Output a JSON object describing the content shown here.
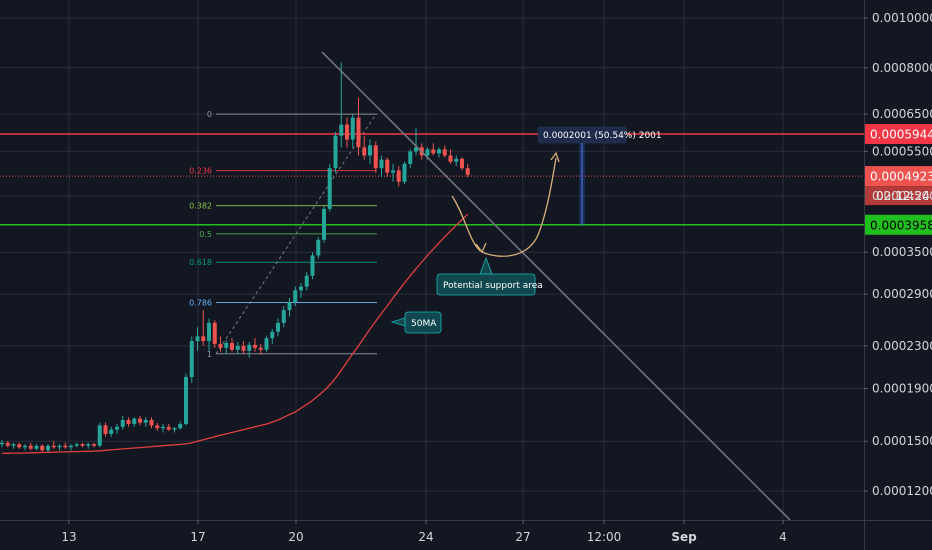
{
  "theme": {
    "background": "#131722",
    "grid": "#2a2e39",
    "up": "#26a69a",
    "down": "#ef5350",
    "ma": "#e04040",
    "resistance": "#f23645",
    "support": "#22c01f",
    "current": "#ef5350",
    "trendline": "#787b86",
    "fib_neutral": "#9598a1",
    "fib_236": "#f23645",
    "fib_382": "#8bc34a",
    "fib_05": "#4caf50",
    "fib_618": "#089981",
    "fib_786": "#64b5f6",
    "projection": "#d8b07a",
    "measure": "#2962ff",
    "note_bg": "#11484f",
    "note_border": "#1bb6b8"
  },
  "chart_data": {
    "type": "candlestick",
    "title": "",
    "y_scale": "log",
    "y_tick_labels": [
      "0.0010000",
      "0.0008000",
      "0.0006500",
      "0.0005500",
      "0.0004500",
      "0.0003500",
      "0.0002900",
      "0.0002300",
      "0.0001900",
      "0.0001500",
      "0.0001200"
    ],
    "y_tick_values": [
      0.001,
      0.0008,
      0.00065,
      0.00055,
      0.00045,
      0.00035,
      0.00029,
      0.00023,
      0.00019,
      0.00015,
      0.00012
    ],
    "x_tick_labels": [
      "13",
      "17",
      "20",
      "24",
      "27",
      "12:00",
      "Sep",
      "4"
    ],
    "x_tick_bold": [
      false,
      false,
      false,
      false,
      false,
      false,
      true,
      false
    ],
    "price_levels": [
      {
        "name": "resistance",
        "label": "0.0005944",
        "value": 0.0005944
      },
      {
        "name": "current",
        "label": "0.0004923",
        "value": 0.0004923,
        "countdown": "02:12:24"
      },
      {
        "name": "support",
        "label": "0.0003958",
        "value": 0.0003958
      }
    ],
    "fibonacci": {
      "high": 0.00065,
      "low": 0.000222,
      "levels": [
        {
          "ratio": 0,
          "label": "0"
        },
        {
          "ratio": 0.236,
          "label": "0.236"
        },
        {
          "ratio": 0.382,
          "label": "0.382"
        },
        {
          "ratio": 0.5,
          "label": "0.5"
        },
        {
          "ratio": 0.618,
          "label": "0.618"
        },
        {
          "ratio": 0.786,
          "label": "0.786"
        },
        {
          "ratio": 1,
          "label": "1"
        }
      ]
    },
    "candles": [
      [
        0.000148,
        0.000151,
        0.000146,
        0.000149
      ],
      [
        0.000149,
        0.00015,
        0.000146,
        0.000147
      ],
      [
        0.000147,
        0.000149,
        0.000145,
        0.000148
      ],
      [
        0.000148,
        0.000149,
        0.000145,
        0.000146
      ],
      [
        0.000146,
        0.000148,
        0.000144,
        0.000147
      ],
      [
        0.000147,
        0.000149,
        0.000144,
        0.000145
      ],
      [
        0.000145,
        0.000148,
        0.000144,
        0.000147
      ],
      [
        0.000147,
        0.000148,
        0.000143,
        0.000144
      ],
      [
        0.000144,
        0.000148,
        0.000143,
        0.000147
      ],
      [
        0.000147,
        0.00015,
        0.000145,
        0.000146
      ],
      [
        0.000146,
        0.000148,
        0.000144,
        0.000147
      ],
      [
        0.000147,
        0.000149,
        0.000145,
        0.000146
      ],
      [
        0.000146,
        0.000148,
        0.000144,
        0.000147
      ],
      [
        0.000147,
        0.000149,
        0.000146,
        0.000148
      ],
      [
        0.000148,
        0.000149,
        0.000146,
        0.000147
      ],
      [
        0.000147,
        0.000149,
        0.000145,
        0.000148
      ],
      [
        0.000148,
        0.000149,
        0.000146,
        0.000147
      ],
      [
        0.000147,
        0.000163,
        0.000146,
        0.000161
      ],
      [
        0.000161,
        0.000163,
        0.000153,
        0.000155
      ],
      [
        0.000155,
        0.00016,
        0.000153,
        0.000158
      ],
      [
        0.000158,
        0.000162,
        0.000155,
        0.00016
      ],
      [
        0.00016,
        0.000168,
        0.000158,
        0.000165
      ],
      [
        0.000165,
        0.000167,
        0.00016,
        0.000162
      ],
      [
        0.000162,
        0.000167,
        0.00016,
        0.000166
      ],
      [
        0.000166,
        0.000168,
        0.000161,
        0.000163
      ],
      [
        0.000163,
        0.000167,
        0.00016,
        0.000165
      ],
      [
        0.000165,
        0.000167,
        0.000159,
        0.000161
      ],
      [
        0.000161,
        0.000163,
        0.000157,
        0.000159
      ],
      [
        0.000159,
        0.000162,
        0.000156,
        0.00016
      ],
      [
        0.00016,
        0.000162,
        0.000157,
        0.000158
      ],
      [
        0.000158,
        0.00016,
        0.000156,
        0.000159
      ],
      [
        0.000159,
        0.000164,
        0.000158,
        0.000162
      ],
      [
        0.000162,
        0.000203,
        0.000161,
        0.0002
      ],
      [
        0.0002,
        0.00024,
        0.000195,
        0.000235
      ],
      [
        0.000235,
        0.00025,
        0.000225,
        0.00024
      ],
      [
        0.00024,
        0.00027,
        0.00023,
        0.000235
      ],
      [
        0.000235,
        0.00026,
        0.000225,
        0.000255
      ],
      [
        0.000255,
        0.000258,
        0.000228,
        0.000232
      ],
      [
        0.000232,
        0.00024,
        0.000224,
        0.000228
      ],
      [
        0.000228,
        0.000236,
        0.000222,
        0.000233
      ],
      [
        0.000233,
        0.000238,
        0.000224,
        0.000226
      ],
      [
        0.000226,
        0.000234,
        0.000222,
        0.00023
      ],
      [
        0.00023,
        0.000235,
        0.000222,
        0.000225
      ],
      [
        0.000225,
        0.000234,
        0.000218,
        0.000231
      ],
      [
        0.000231,
        0.000238,
        0.000224,
        0.000228
      ],
      [
        0.000228,
        0.000232,
        0.000221,
        0.000226
      ],
      [
        0.000226,
        0.000241,
        0.000224,
        0.000238
      ],
      [
        0.000238,
        0.000248,
        0.000232,
        0.000245
      ],
      [
        0.000245,
        0.00026,
        0.00024,
        0.000255
      ],
      [
        0.000255,
        0.000275,
        0.00025,
        0.00027
      ],
      [
        0.00027,
        0.000285,
        0.000262,
        0.00028
      ],
      [
        0.00028,
        0.0003,
        0.000275,
        0.000295
      ],
      [
        0.000295,
        0.000305,
        0.000285,
        0.0003
      ],
      [
        0.0003,
        0.00032,
        0.000295,
        0.000315
      ],
      [
        0.000315,
        0.00035,
        0.00031,
        0.000345
      ],
      [
        0.000345,
        0.000375,
        0.00034,
        0.00037
      ],
      [
        0.00037,
        0.00043,
        0.000365,
        0.000425
      ],
      [
        0.000425,
        0.00052,
        0.00042,
        0.00051
      ],
      [
        0.00051,
        0.0006,
        0.0005,
        0.00059
      ],
      [
        0.00059,
        0.00082,
        0.00056,
        0.00062
      ],
      [
        0.00062,
        0.00064,
        0.00056,
        0.00058
      ],
      [
        0.00058,
        0.00065,
        0.00056,
        0.00064
      ],
      [
        0.00064,
        0.0007,
        0.00054,
        0.00056
      ],
      [
        0.00056,
        0.00059,
        0.00053,
        0.00054
      ],
      [
        0.00054,
        0.00058,
        0.00052,
        0.000565
      ],
      [
        0.000565,
        0.000575,
        0.0005,
        0.00051
      ],
      [
        0.00051,
        0.00054,
        0.00049,
        0.00053
      ],
      [
        0.00053,
        0.000535,
        0.00049,
        0.0005
      ],
      [
        0.0005,
        0.00052,
        0.00048,
        0.000505
      ],
      [
        0.000505,
        0.000515,
        0.00047,
        0.00048
      ],
      [
        0.00048,
        0.000525,
        0.000475,
        0.00052
      ],
      [
        0.00052,
        0.000555,
        0.00051,
        0.00055
      ],
      [
        0.00055,
        0.00061,
        0.00054,
        0.00056
      ],
      [
        0.00056,
        0.00057,
        0.00053,
        0.00054
      ],
      [
        0.00054,
        0.00056,
        0.00053,
        0.000555
      ],
      [
        0.000555,
        0.00057,
        0.00054,
        0.000545
      ],
      [
        0.000545,
        0.00056,
        0.000535,
        0.000555
      ],
      [
        0.000555,
        0.000565,
        0.000535,
        0.00054
      ],
      [
        0.00054,
        0.000555,
        0.00052,
        0.000525
      ],
      [
        0.000525,
        0.00054,
        0.000515,
        0.000532
      ],
      [
        0.000532,
        0.000535,
        0.000505,
        0.00051
      ],
      [
        0.00051,
        0.00052,
        0.00049,
        0.000495
      ]
    ],
    "ma": {
      "label": "50MA",
      "values": [
        0.000142,
        0.0001421,
        0.0001422,
        0.0001422,
        0.0001423,
        0.0001424,
        0.0001425,
        0.0001426,
        0.0001427,
        0.0001428,
        0.0001429,
        0.000143,
        0.0001431,
        0.0001432,
        0.0001433,
        0.0001434,
        0.0001435,
        0.0001437,
        0.000144,
        0.0001443,
        0.0001446,
        0.0001449,
        0.0001452,
        0.0001455,
        0.0001458,
        0.0001461,
        0.0001464,
        0.0001467,
        0.000147,
        0.0001473,
        0.0001476,
        0.0001479,
        0.0001482,
        0.000149,
        0.00015,
        0.000151,
        0.000152,
        0.000153,
        0.000154,
        0.000155,
        0.000156,
        0.000157,
        0.000158,
        0.000159,
        0.00016,
        0.000161,
        0.000162,
        0.0001635,
        0.000165,
        0.000167,
        0.000169,
        0.000171,
        0.000174,
        0.000177,
        0.00018,
        0.000184,
        0.000188,
        0.000193,
        0.000199,
        0.000206,
        0.000214,
        0.000222,
        0.00023,
        0.000239,
        0.000248,
        0.000257,
        0.000266,
        0.000275,
        0.000285,
        0.000295,
        0.000305,
        0.000315,
        0.000325,
        0.000335,
        0.000345,
        0.000355,
        0.000365,
        0.000375,
        0.000385,
        0.000395,
        0.000405,
        0.000415
      ]
    },
    "annotations": {
      "measure": "0.0002001 (50.54%) 2001",
      "support_note": "Potential support area",
      "ma_note": "50MA"
    }
  }
}
